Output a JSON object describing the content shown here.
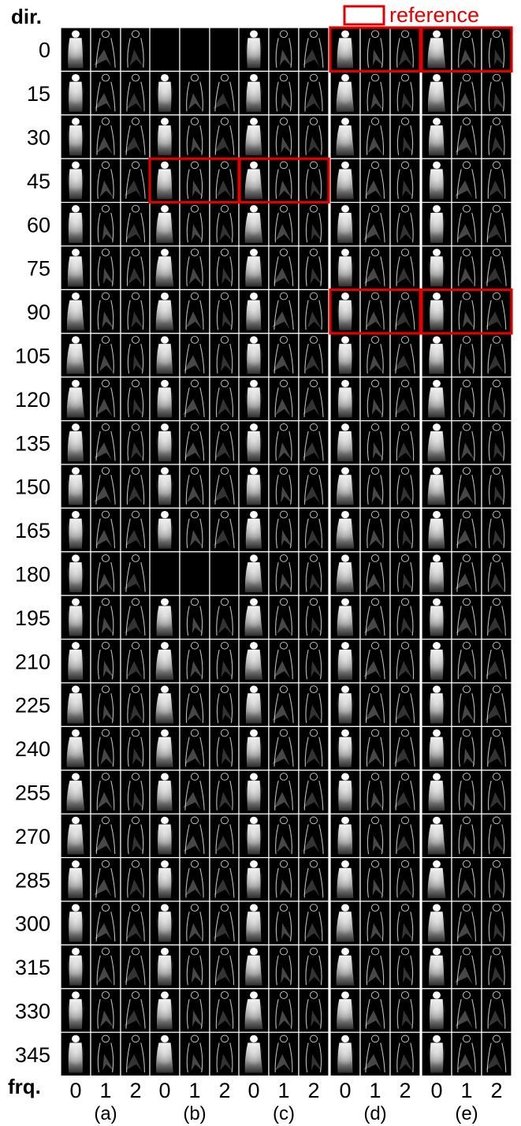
{
  "header": {
    "dir_label": "dir.",
    "frq_label": "frq."
  },
  "legend": {
    "label": "reference",
    "color": "#e00000"
  },
  "directions": [
    "0",
    "15",
    "30",
    "45",
    "60",
    "75",
    "90",
    "105",
    "120",
    "135",
    "150",
    "165",
    "180",
    "195",
    "210",
    "225",
    "240",
    "255",
    "270",
    "285",
    "300",
    "315",
    "330",
    "345"
  ],
  "frequencies": [
    "0",
    "1",
    "2"
  ],
  "groups": [
    "(a)",
    "(b)",
    "(c)",
    "(d)",
    "(e)"
  ],
  "references": [
    {
      "group": "(b)",
      "direction": "45"
    },
    {
      "group": "(c)",
      "direction": "45"
    },
    {
      "group": "(d)",
      "direction": "0"
    },
    {
      "group": "(e)",
      "direction": "0"
    },
    {
      "group": "(d)",
      "direction": "90"
    },
    {
      "group": "(e)",
      "direction": "90"
    }
  ],
  "blank_cells": [
    {
      "group": "(b)",
      "direction": "0"
    },
    {
      "group": "(b)",
      "direction": "180"
    }
  ],
  "colors": {
    "background": "#ffffff",
    "cell": "#000000",
    "gridline": "#ffffff",
    "reference": "#e00000"
  }
}
